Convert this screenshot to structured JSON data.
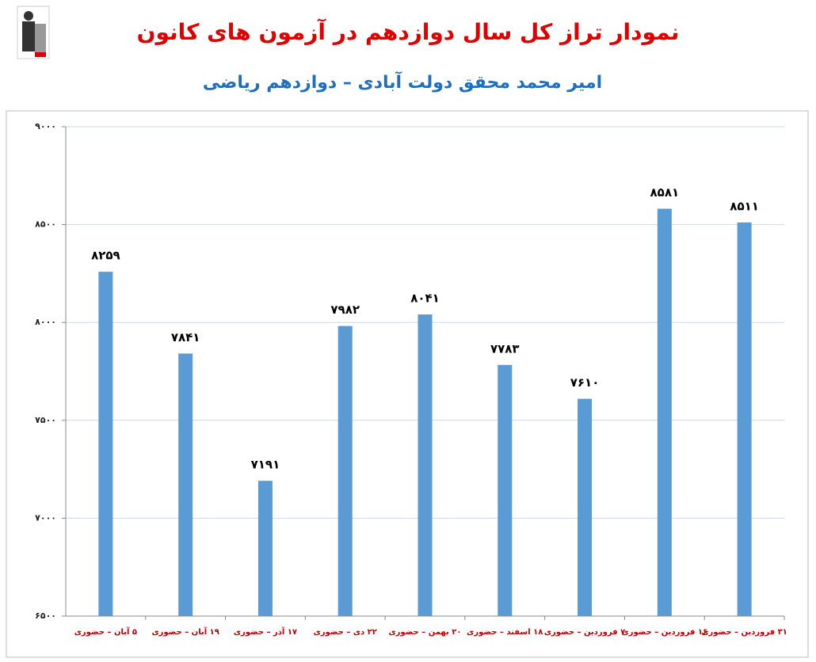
{
  "chart_data": {
    "type": "bar",
    "title": "نمودار تراز کل سال دوازدهم در آزمون های کانون",
    "subtitle": "امیر محمد محقق دولت آبادی – دوازدهم ریاضی",
    "categories": [
      "۵ آبان – حضوری",
      "۱۹ آبان – حضوری",
      "۱۷ آذر – حضوری",
      "۲۲ دی – حضوری",
      "۲۰ بهمن – حضوری",
      "۱۸ اسفند – حضوری",
      "۷ فروردین – حضوری",
      "۱۶ فروردین – حضوری",
      "۳۱ فروردین – حضوری"
    ],
    "values": [
      8259,
      7841,
      7191,
      7982,
      8041,
      7783,
      7610,
      8581,
      8511
    ],
    "value_labels": [
      "۸۲۵۹",
      "۷۸۴۱",
      "۷۱۹۱",
      "۷۹۸۲",
      "۸۰۴۱",
      "۷۷۸۳",
      "۷۶۱۰",
      "۸۵۸۱",
      "۸۵۱۱"
    ],
    "color": "#5b9bd5",
    "ylim": [
      6500,
      9000
    ],
    "yticks": [
      {
        "value": 6500,
        "label": "۶۵۰۰"
      },
      {
        "value": 7000,
        "label": "۷۰۰۰"
      },
      {
        "value": 7500,
        "label": "۷۵۰۰"
      },
      {
        "value": 8000,
        "label": "۸۰۰۰"
      },
      {
        "value": 8500,
        "label": "۸۵۰۰"
      },
      {
        "value": 9000,
        "label": "۹۰۰۰"
      }
    ],
    "grid": true
  }
}
